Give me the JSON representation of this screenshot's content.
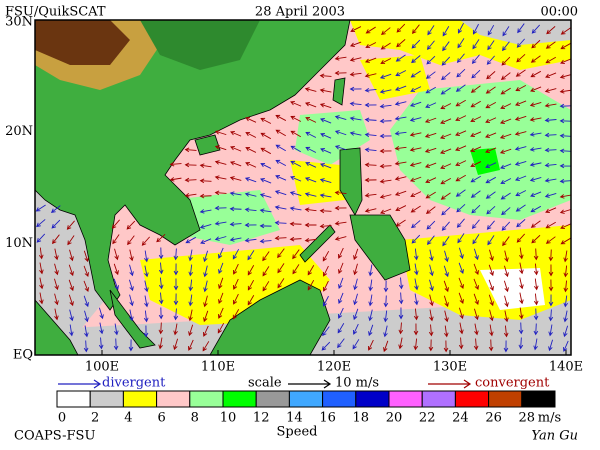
{
  "header": {
    "left": "FSU/QuikSCAT",
    "center": "28 April 2003",
    "right": "00:00"
  },
  "map": {
    "lat_labels": [
      "30N",
      "20N",
      "10N",
      "EQ"
    ],
    "lon_labels": [
      "100E",
      "110E",
      "120E",
      "130E",
      "140E"
    ]
  },
  "legend": {
    "divergent": "divergent",
    "scale": "scale",
    "scale_value": "10 m/s",
    "convergent": "convergent"
  },
  "speed_scale": {
    "labels": [
      "0",
      "2",
      "4",
      "6",
      "8",
      "10",
      "12",
      "14",
      "16",
      "18",
      "20",
      "22",
      "24",
      "26",
      "28"
    ],
    "unit": "m/s",
    "title": "Speed",
    "colors": [
      "#ffffff",
      "#cccccc",
      "#ffff00",
      "#ffc8c8",
      "#98ff98",
      "#00ff00",
      "#999999",
      "#40a8ff",
      "#2060ff",
      "#0000c8",
      "#ff60ff",
      "#b070ff",
      "#ff0000",
      "#c04000",
      "#000000"
    ]
  },
  "footer": {
    "left": "COAPS-FSU",
    "right": "Yan Gu"
  }
}
